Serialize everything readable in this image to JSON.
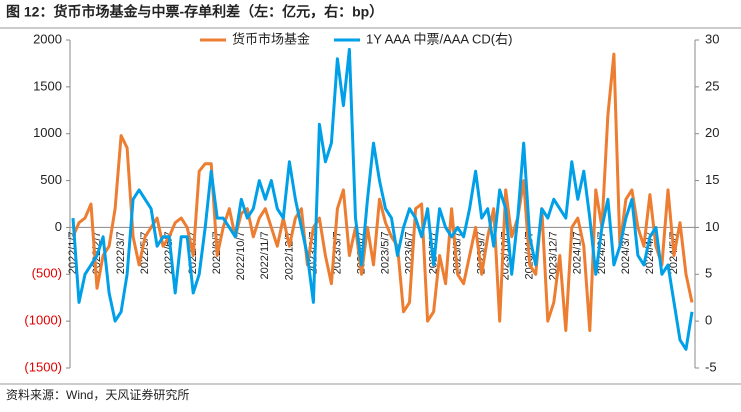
{
  "chart_data": {
    "type": "line",
    "title": "图 12：货币市场基金与中票-存单利差（左：亿元，右：bp）",
    "source": "资料来源：Wind，天风证券研究所",
    "categories": [
      "2022/1/7",
      null,
      null,
      null,
      "2022/2/7",
      null,
      null,
      null,
      "2022/3/7",
      null,
      null,
      null,
      "2022/5/7",
      null,
      null,
      null,
      "2022/6/7",
      null,
      null,
      null,
      "2022/7/7",
      null,
      null,
      null,
      "2022/9/7",
      null,
      null,
      null,
      "2022/10/7",
      null,
      null,
      null,
      "2022/11/7",
      null,
      null,
      null,
      "2022/12/7",
      null,
      null,
      null,
      "2023/2/7",
      null,
      null,
      null,
      "2023/3/7",
      null,
      null,
      null,
      "2023/4/7",
      null,
      null,
      null,
      "2023/5/7",
      null,
      null,
      null,
      "2023/6/7",
      null,
      null,
      null,
      "2023/7/7",
      null,
      null,
      null,
      "2023/8/7",
      null,
      null,
      null,
      "2023/9/7",
      null,
      null,
      null,
      "2023/10/7",
      null,
      null,
      null,
      "2023/11/7",
      null,
      null,
      null,
      "2023/12/7",
      null,
      null,
      null,
      "2024/1/7",
      null,
      null,
      null,
      "2024/2/7",
      null,
      null,
      null,
      "2024/3/7",
      null,
      null,
      null,
      "2024/4/7",
      null,
      null,
      null,
      "2024/5/7",
      null,
      null,
      null
    ],
    "series": [
      {
        "name": "货币市场基金",
        "color": "#ed7d31",
        "axis": "y",
        "values": [
          -100,
          50,
          100,
          250,
          -650,
          -300,
          -200,
          200,
          980,
          850,
          -100,
          -400,
          -100,
          0,
          100,
          -200,
          -100,
          50,
          100,
          0,
          -300,
          600,
          680,
          680,
          -300,
          0,
          200,
          -100,
          150,
          200,
          -100,
          100,
          200,
          0,
          -200,
          100,
          -200,
          100,
          200,
          -400,
          0,
          100,
          -300,
          -600,
          200,
          400,
          -300,
          0,
          -500,
          0,
          -400,
          300,
          50,
          -100,
          -200,
          -900,
          -800,
          200,
          250,
          -1000,
          -900,
          -300,
          -600,
          200,
          -500,
          -600,
          -300,
          0,
          -500,
          -100,
          200,
          -1000,
          400,
          -100,
          100,
          500,
          -400,
          -500,
          200,
          -1000,
          -800,
          -300,
          -1100,
          0,
          100,
          -200,
          -1100,
          400,
          0,
          1200,
          1850,
          -200,
          300,
          400,
          0,
          -200,
          350,
          -200,
          -400,
          400,
          -300,
          50,
          -500,
          -800
        ]
      },
      {
        "name": "1Y AAA 中票/AAA CD(右)",
        "color": "#00a0e9",
        "axis": "y2",
        "values": [
          11,
          2,
          5,
          6,
          7,
          9,
          3,
          0,
          1,
          5,
          13,
          14,
          13,
          12,
          8,
          9,
          9,
          3,
          9,
          9,
          3,
          5,
          10,
          16,
          11,
          11,
          10,
          9,
          13,
          11,
          12,
          15,
          13,
          15,
          12,
          11,
          17,
          13,
          10,
          7,
          2,
          21,
          17,
          19,
          28,
          23,
          29,
          11,
          6,
          13,
          19,
          15,
          12,
          11,
          7,
          10,
          12,
          11,
          9,
          12,
          6,
          12,
          10,
          9,
          10,
          9,
          12,
          16,
          11,
          12,
          8,
          14,
          12,
          5,
          11,
          19,
          9,
          6,
          12,
          11,
          13,
          12,
          11,
          17,
          13,
          16,
          11,
          5,
          10,
          13,
          6,
          8,
          11,
          13,
          7,
          6,
          9,
          10,
          5,
          6,
          2,
          -2,
          -3,
          1
        ]
      }
    ],
    "ylim": [
      -1500,
      2000
    ],
    "yticks": [
      2000,
      1500,
      1000,
      500,
      0,
      {
        "value": -500,
        "label": "(500)"
      },
      {
        "value": -1000,
        "label": "(1000)"
      },
      {
        "value": -1500,
        "label": "(1500)"
      }
    ],
    "negative_tick_color": "#e00000",
    "y2lim": [
      -5,
      30
    ],
    "y2ticks": [
      30,
      25,
      20,
      15,
      10,
      5,
      0,
      -5
    ],
    "legend": "top"
  }
}
